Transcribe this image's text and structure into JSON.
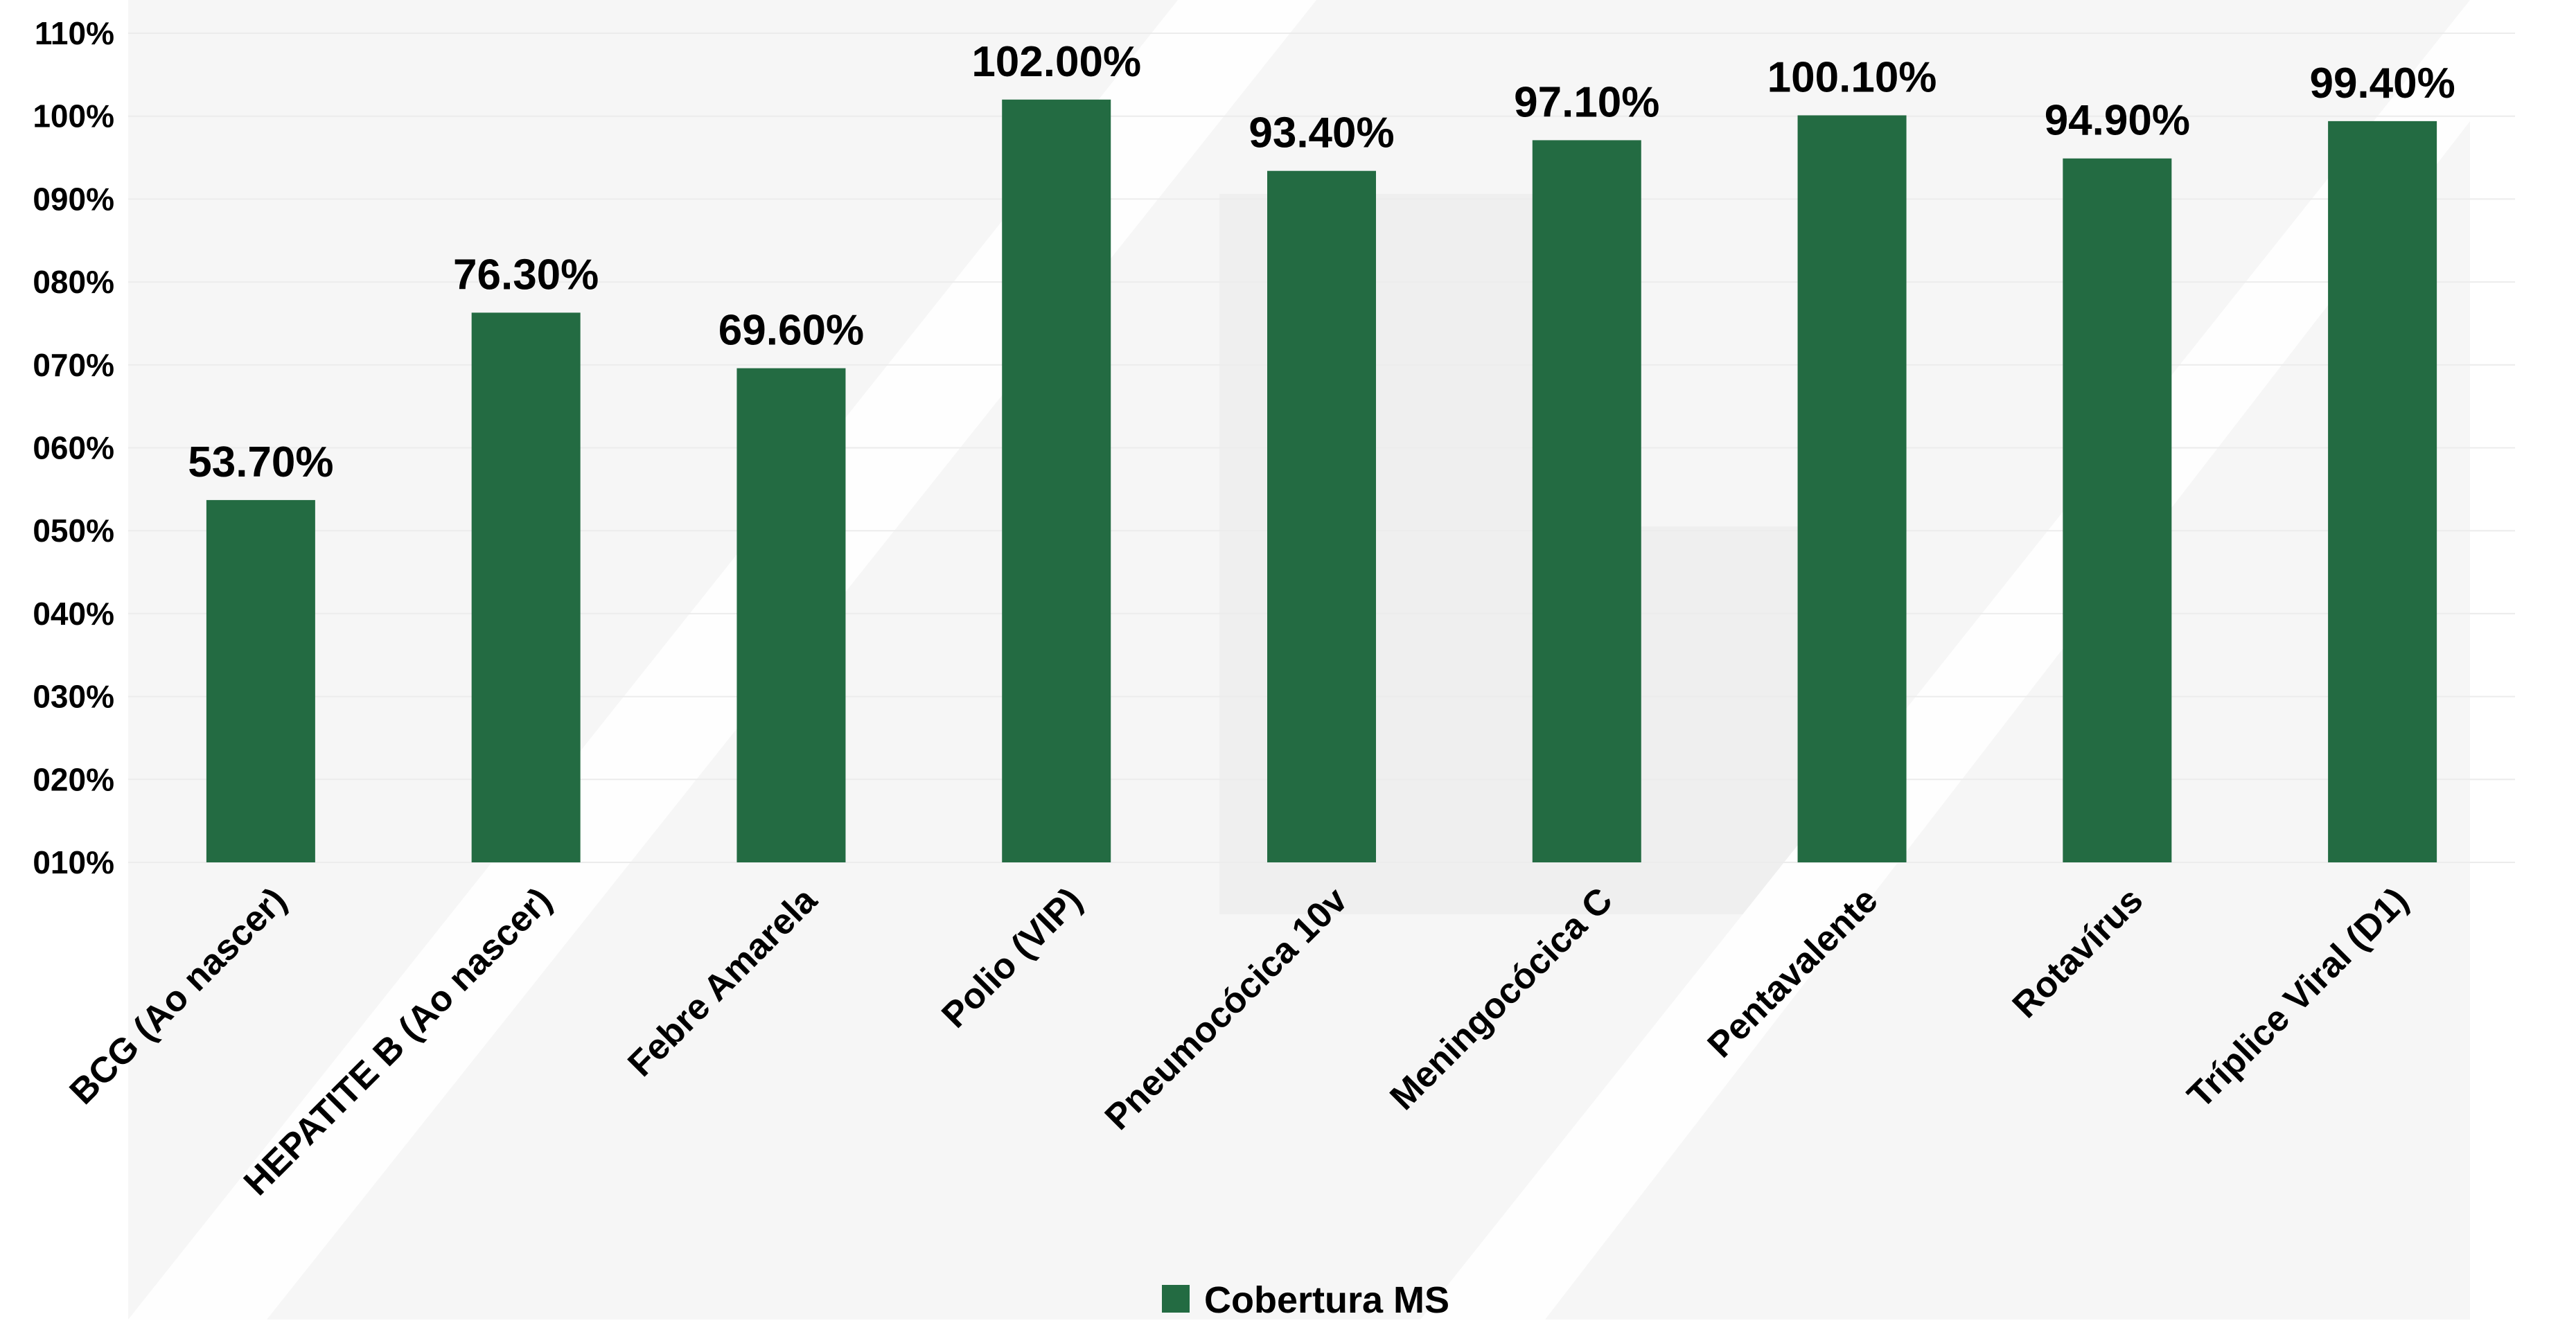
{
  "chart_data": {
    "type": "bar",
    "categories": [
      "BCG (Ao nascer)",
      "HEPATITE B (Ao nascer)",
      "Febre Amarela",
      "Polio (VIP)",
      "Pneumocócica 10v",
      "Meningocócica C",
      "Pentavalente",
      "Rotavírus",
      "Tríplice Viral (D1)"
    ],
    "series": [
      {
        "name": "Cobertura MS",
        "values": [
          53.7,
          76.3,
          69.6,
          102.0,
          93.4,
          97.1,
          100.1,
          94.9,
          99.4
        ],
        "data_labels": [
          "53.70%",
          "76.30%",
          "69.60%",
          "102.00%",
          "93.40%",
          "97.10%",
          "100.10%",
          "94.90%",
          "99.40%"
        ]
      }
    ],
    "ylim": [
      10,
      110
    ],
    "y_ticks": [
      10,
      20,
      30,
      40,
      50,
      60,
      70,
      80,
      90,
      100,
      110
    ],
    "y_tick_labels": [
      "010%",
      "020%",
      "030%",
      "040%",
      "050%",
      "060%",
      "070%",
      "080%",
      "090%",
      "100%",
      "110%"
    ],
    "bar_color": "#236b42",
    "grid": true,
    "legend": "bottom-center",
    "title": "",
    "xlabel": "",
    "ylabel": ""
  }
}
